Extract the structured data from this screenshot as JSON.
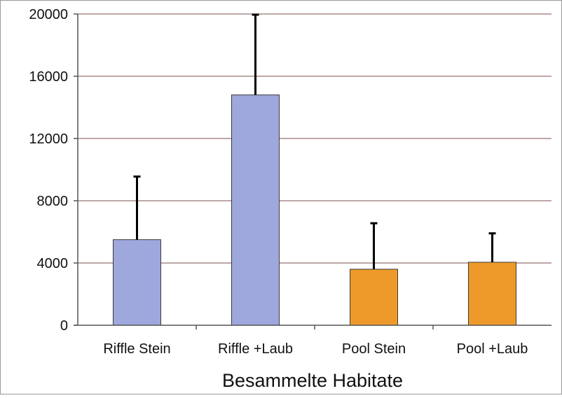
{
  "chart_data": {
    "type": "bar",
    "title": "",
    "xlabel": "Besammelte Habitate",
    "ylabel": "",
    "categories": [
      "Riffle Stein",
      "Riffle +Laub",
      "Pool Stein",
      "Pool +Laub"
    ],
    "values": [
      5500,
      14800,
      3600,
      4050
    ],
    "error_upper": [
      9600,
      20000,
      6600,
      5950
    ],
    "bar_colors": [
      "#9ea8dc",
      "#9ea8dc",
      "#ee9a2a",
      "#ee9a2a"
    ],
    "ylim": [
      0,
      20000
    ],
    "yticks": [
      0,
      4000,
      8000,
      12000,
      16000,
      20000
    ],
    "ytick_labels": [
      "0",
      "4000",
      "8000",
      "12000",
      "16000",
      "20000"
    ],
    "grid": true,
    "colors": {
      "grid": "#a88a8a",
      "bar_edge": "#3a3a3a",
      "error_bar": "#000000",
      "axis": "#555555"
    }
  }
}
